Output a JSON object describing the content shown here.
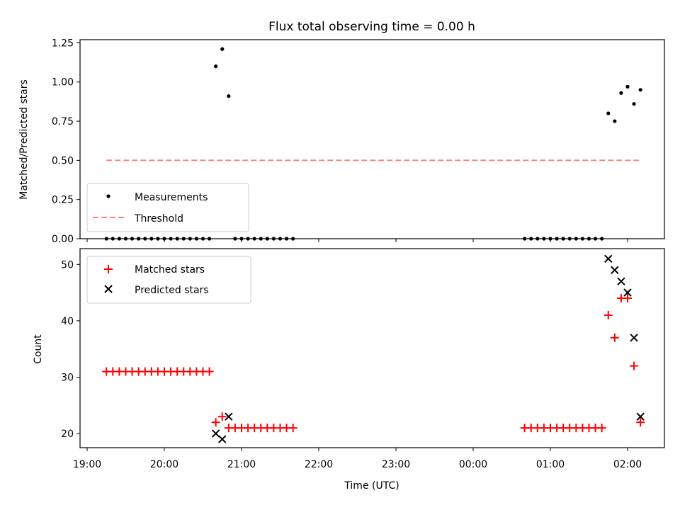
{
  "chart_data": [
    {
      "type": "scatter",
      "title": "Flux total observing time = 0.00 h",
      "ylabel": "Matched/Predicted stars",
      "xlabel": "",
      "ylim": [
        0,
        1.27
      ],
      "yticks": [
        "0.00",
        "0.25",
        "0.50",
        "0.75",
        "1.00",
        "1.25"
      ],
      "legend_position": "lower-left",
      "series": [
        {
          "name": "Measurements",
          "marker": "dot",
          "color": "#000000",
          "points": [
            [
              "19:15",
              0
            ],
            [
              "19:20",
              0
            ],
            [
              "19:25",
              0
            ],
            [
              "19:30",
              0
            ],
            [
              "19:35",
              0
            ],
            [
              "19:40",
              0
            ],
            [
              "19:45",
              0
            ],
            [
              "19:50",
              0
            ],
            [
              "19:55",
              0
            ],
            [
              "20:00",
              0
            ],
            [
              "20:05",
              0
            ],
            [
              "20:10",
              0
            ],
            [
              "20:15",
              0
            ],
            [
              "20:20",
              0
            ],
            [
              "20:25",
              0
            ],
            [
              "20:30",
              0
            ],
            [
              "20:35",
              0
            ],
            [
              "20:40",
              1.1
            ],
            [
              "20:45",
              1.21
            ],
            [
              "20:50",
              0.91
            ],
            [
              "20:55",
              0
            ],
            [
              "21:00",
              0
            ],
            [
              "21:05",
              0
            ],
            [
              "21:10",
              0
            ],
            [
              "21:15",
              0
            ],
            [
              "21:20",
              0
            ],
            [
              "21:25",
              0
            ],
            [
              "21:30",
              0
            ],
            [
              "21:35",
              0
            ],
            [
              "21:40",
              0
            ],
            [
              "00:40",
              0
            ],
            [
              "00:45",
              0
            ],
            [
              "00:50",
              0
            ],
            [
              "00:55",
              0
            ],
            [
              "01:00",
              0
            ],
            [
              "01:05",
              0
            ],
            [
              "01:10",
              0
            ],
            [
              "01:15",
              0
            ],
            [
              "01:20",
              0
            ],
            [
              "01:25",
              0
            ],
            [
              "01:30",
              0
            ],
            [
              "01:35",
              0
            ],
            [
              "01:40",
              0
            ],
            [
              "01:45",
              0.8
            ],
            [
              "01:50",
              0.75
            ],
            [
              "01:55",
              0.93
            ],
            [
              "02:00",
              0.97
            ],
            [
              "02:05",
              0.86
            ],
            [
              "02:10",
              0.95
            ]
          ]
        },
        {
          "name": "Threshold",
          "marker": "dashed-line",
          "color": "#ff7f7f",
          "points": [
            [
              "19:15",
              0.5
            ],
            [
              "02:10",
              0.5
            ]
          ]
        }
      ]
    },
    {
      "type": "scatter",
      "title": "",
      "ylabel": "Count",
      "xlabel": "Time (UTC)",
      "ylim": [
        17.5,
        52.8
      ],
      "yticks": [
        "20",
        "30",
        "40",
        "50"
      ],
      "xticks": [
        "19:00",
        "20:00",
        "21:00",
        "22:00",
        "23:00",
        "00:00",
        "01:00",
        "02:00"
      ],
      "legend_position": "upper-left",
      "series": [
        {
          "name": "Matched stars",
          "marker": "plus",
          "color": "#ff0000",
          "points": [
            [
              "19:15",
              31
            ],
            [
              "19:20",
              31
            ],
            [
              "19:25",
              31
            ],
            [
              "19:30",
              31
            ],
            [
              "19:35",
              31
            ],
            [
              "19:40",
              31
            ],
            [
              "19:45",
              31
            ],
            [
              "19:50",
              31
            ],
            [
              "19:55",
              31
            ],
            [
              "20:00",
              31
            ],
            [
              "20:05",
              31
            ],
            [
              "20:10",
              31
            ],
            [
              "20:15",
              31
            ],
            [
              "20:20",
              31
            ],
            [
              "20:25",
              31
            ],
            [
              "20:30",
              31
            ],
            [
              "20:35",
              31
            ],
            [
              "20:40",
              22
            ],
            [
              "20:45",
              23
            ],
            [
              "20:50",
              21
            ],
            [
              "20:55",
              21
            ],
            [
              "21:00",
              21
            ],
            [
              "21:05",
              21
            ],
            [
              "21:10",
              21
            ],
            [
              "21:15",
              21
            ],
            [
              "21:20",
              21
            ],
            [
              "21:25",
              21
            ],
            [
              "21:30",
              21
            ],
            [
              "21:35",
              21
            ],
            [
              "21:40",
              21
            ],
            [
              "00:40",
              21
            ],
            [
              "00:45",
              21
            ],
            [
              "00:50",
              21
            ],
            [
              "00:55",
              21
            ],
            [
              "01:00",
              21
            ],
            [
              "01:05",
              21
            ],
            [
              "01:10",
              21
            ],
            [
              "01:15",
              21
            ],
            [
              "01:20",
              21
            ],
            [
              "01:25",
              21
            ],
            [
              "01:30",
              21
            ],
            [
              "01:35",
              21
            ],
            [
              "01:40",
              21
            ],
            [
              "01:45",
              41
            ],
            [
              "01:50",
              37
            ],
            [
              "01:55",
              44
            ],
            [
              "02:00",
              44
            ],
            [
              "02:05",
              32
            ],
            [
              "02:10",
              22
            ]
          ]
        },
        {
          "name": "Predicted stars",
          "marker": "x",
          "color": "#000000",
          "points": [
            [
              "20:40",
              20
            ],
            [
              "20:45",
              19
            ],
            [
              "20:50",
              23
            ],
            [
              "01:45",
              51
            ],
            [
              "01:50",
              49
            ],
            [
              "01:55",
              47
            ],
            [
              "02:00",
              45
            ],
            [
              "02:05",
              37
            ],
            [
              "02:10",
              23
            ]
          ]
        }
      ]
    }
  ]
}
